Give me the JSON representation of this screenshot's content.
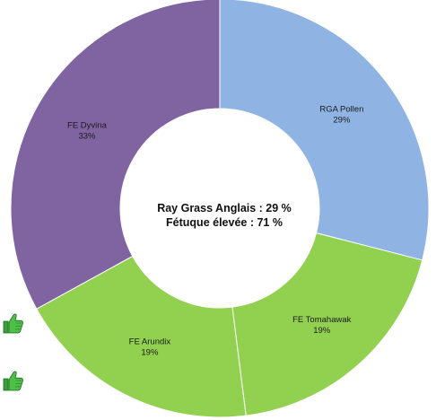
{
  "colors": {
    "background": "#ffffff",
    "rga": "#8fb4e3",
    "fe_green": "#92d050",
    "fe_purple": "#8064a2",
    "thumb_green": "#3aa13a"
  },
  "chart_data": {
    "type": "pie",
    "donut": true,
    "start": "top",
    "direction": "clockwise",
    "slices": [
      {
        "label": "RGA Pollen",
        "percent": "29%",
        "value": 29,
        "color": "#8fb4e3"
      },
      {
        "label": "FE Tomahawak",
        "percent": "19%",
        "value": 19,
        "color": "#92d050"
      },
      {
        "label": "FE Arundix",
        "percent": "19%",
        "value": 19,
        "color": "#92d050"
      },
      {
        "label": "FE Dyvina",
        "percent": "33%",
        "value": 33,
        "color": "#8064a2"
      }
    ],
    "center_lines": [
      "Ray Grass Anglais : 29 %",
      "Fétuque élevée : 71 %"
    ]
  },
  "icons": {
    "thumb_1": "thumbs-up-icon",
    "thumb_2": "thumbs-up-icon"
  }
}
